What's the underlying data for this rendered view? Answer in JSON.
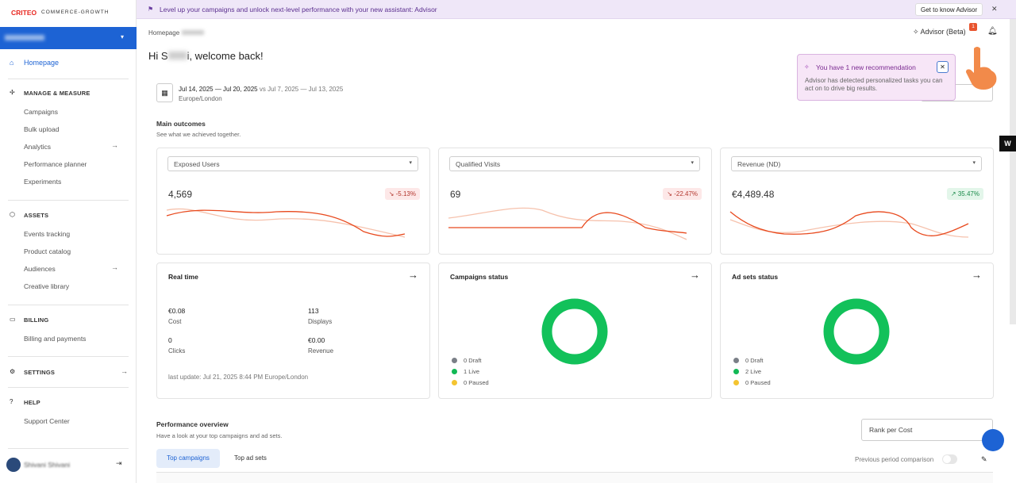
{
  "banner": {
    "text": "Level up your campaigns and unlock next-level performance with your new assistant: Advisor",
    "button": "Get to know Advisor"
  },
  "sidebar": {
    "logo_brand": "CRITEO",
    "logo_sub": "COMMERCE-GROWTH",
    "home": "Homepage",
    "sections": [
      {
        "title": "MANAGE & MEASURE",
        "items": [
          "Campaigns",
          "Bulk upload",
          "Analytics",
          "Performance planner",
          "Experiments"
        ]
      },
      {
        "title": "ASSETS",
        "items": [
          "Events tracking",
          "Product catalog",
          "Audiences",
          "Creative library"
        ]
      },
      {
        "title": "BILLING",
        "items": [
          "Billing and payments"
        ]
      },
      {
        "title": "SETTINGS",
        "items": []
      },
      {
        "title": "HELP",
        "items": [
          "Support Center"
        ]
      }
    ],
    "user": "Shivani Shivani"
  },
  "header": {
    "breadcrumb": "Homepage",
    "greeting_start": "Hi S",
    "greeting_end": "i, welcome back!",
    "advisor": "Advisor (Beta)",
    "advisor_badge": "1"
  },
  "popup": {
    "title": "You have 1 new recommendation",
    "body": "Advisor has detected personalized tasks you can act on to drive big results."
  },
  "date": {
    "current": "Jul 14, 2025 — Jul 20, 2025",
    "vs": "vs",
    "previous": "Jul 7, 2025 — Jul 13, 2025",
    "timezone": "Europe/London"
  },
  "outcomes": {
    "title": "Main outcomes",
    "subtitle": "See what we achieved together.",
    "cards": [
      {
        "metric": "Exposed Users",
        "value": "4,569",
        "change": "-5.13%",
        "trend": "down"
      },
      {
        "metric": "Qualified Visits",
        "value": "69",
        "change": "-22.47%",
        "trend": "down"
      },
      {
        "metric": "Revenue (ND)",
        "value": "€4,489.48",
        "change": "35.47%",
        "trend": "up"
      }
    ]
  },
  "realtime": {
    "title": "Real time",
    "stats": [
      {
        "value": "€0.08",
        "label": "Cost"
      },
      {
        "value": "113",
        "label": "Displays"
      },
      {
        "value": "0",
        "label": "Clicks"
      },
      {
        "value": "€0.00",
        "label": "Revenue"
      }
    ],
    "last_update": "last update: Jul 21, 2025 8:44 PM Europe/London"
  },
  "status_cards": [
    {
      "title": "Campaigns status",
      "legend": [
        "0 Draft",
        "1 Live",
        "0 Paused"
      ]
    },
    {
      "title": "Ad sets status",
      "legend": [
        "0 Draft",
        "2 Live",
        "0 Paused"
      ]
    }
  ],
  "performance": {
    "title": "Performance overview",
    "subtitle": "Have a look at your top campaigns and ad sets.",
    "rank": "Rank per Cost",
    "tabs": [
      "Top campaigns",
      "Top ad sets"
    ],
    "comparison": "Previous period comparison"
  }
}
